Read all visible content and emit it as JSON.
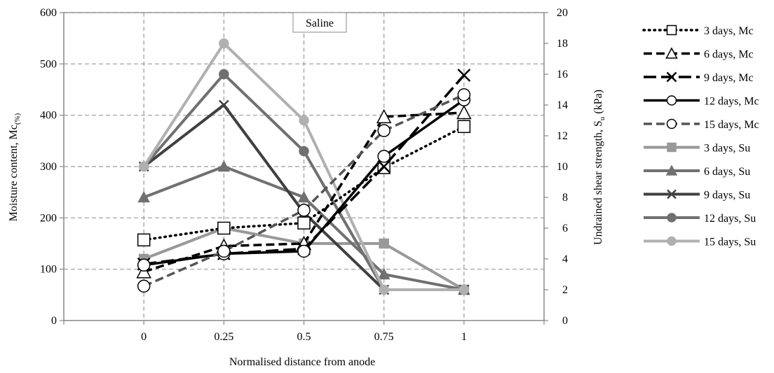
{
  "chart_data": {
    "type": "line",
    "annotation": "Saline",
    "xlabel": "Normalised distance from anode",
    "ylabel_left": {
      "main": "Moisture content, Mc",
      "sub": "(%)"
    },
    "ylabel_right": {
      "main": "Undrained shear strength, S",
      "sub": "u",
      "tail": " (kPa)"
    },
    "x_ticks": [
      "0",
      "0.25",
      "0.5",
      "0.75",
      "1"
    ],
    "x_tick_values": [
      0,
      0.25,
      0.5,
      0.75,
      1
    ],
    "xlim": [
      -0.25,
      1.25
    ],
    "ylim_left": [
      0,
      600
    ],
    "ylim_right": [
      0,
      20
    ],
    "y_left_ticks": [
      "0",
      "100",
      "200",
      "300",
      "400",
      "500",
      "600"
    ],
    "y_right_ticks": [
      "0",
      "2",
      "4",
      "6",
      "8",
      "10",
      "12",
      "14",
      "16",
      "18",
      "20"
    ],
    "grid": true,
    "legend_position": "right",
    "x": [
      0,
      0.25,
      0.5,
      0.75,
      1
    ],
    "series": [
      {
        "name": "3 days, Mc",
        "axis": "left",
        "values": [
          157,
          180,
          190,
          298,
          378
        ],
        "color": "#000000",
        "dash": "dot",
        "marker": "square",
        "marker_fill": "#ffffff"
      },
      {
        "name": "6 days, Mc",
        "axis": "left",
        "values": [
          95,
          145,
          150,
          397,
          405
        ],
        "color": "#000000",
        "dash": "dash",
        "marker": "triangle",
        "marker_fill": "#ffffff"
      },
      {
        "name": "9 days, Mc",
        "axis": "left",
        "values": [
          110,
          130,
          140,
          300,
          478
        ],
        "color": "#000000",
        "dash": "longdash",
        "marker": "x",
        "marker_fill": "none"
      },
      {
        "name": "12 days, Mc",
        "axis": "left",
        "values": [
          108,
          130,
          135,
          320,
          430
        ],
        "color": "#000000",
        "dash": "solid",
        "marker": "circle",
        "marker_fill": "#ffffff"
      },
      {
        "name": "15 days, Mc",
        "axis": "left",
        "values": [
          67,
          135,
          215,
          370,
          440
        ],
        "color": "#555555",
        "dash": "dash",
        "marker": "circle",
        "marker_fill": "#ffffff"
      },
      {
        "name": "3 days, Su",
        "axis": "right",
        "values": [
          4,
          6,
          5,
          5,
          2
        ],
        "color": "#999999",
        "dash": "solid",
        "marker": "square",
        "marker_fill": "#999999"
      },
      {
        "name": "6 days, Su",
        "axis": "right",
        "values": [
          8,
          10,
          8,
          3,
          2
        ],
        "color": "#707070",
        "dash": "solid",
        "marker": "triangle",
        "marker_fill": "#707070"
      },
      {
        "name": "9 days, Su",
        "axis": "right",
        "values": [
          10,
          14,
          7,
          2,
          2
        ],
        "color": "#404040",
        "dash": "solid",
        "marker": "x",
        "marker_fill": "none"
      },
      {
        "name": "12 days, Su",
        "axis": "right",
        "values": [
          10,
          16,
          11,
          2,
          2
        ],
        "color": "#707070",
        "dash": "solid",
        "marker": "circle",
        "marker_fill": "#707070"
      },
      {
        "name": "15 days, Su",
        "axis": "right",
        "values": [
          10,
          18,
          13,
          2,
          2
        ],
        "color": "#b0b0b0",
        "dash": "solid",
        "marker": "circle",
        "marker_fill": "#b0b0b0"
      }
    ]
  }
}
